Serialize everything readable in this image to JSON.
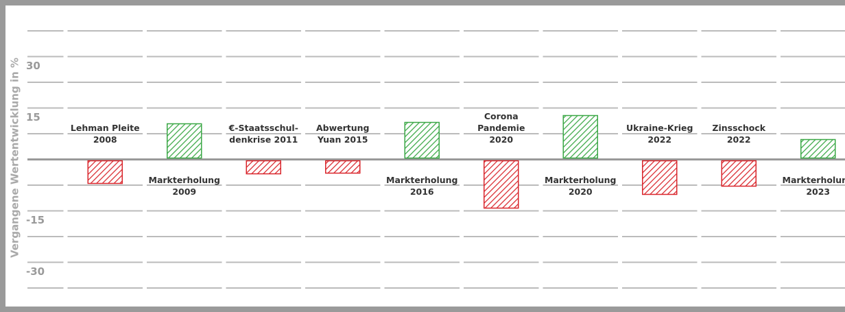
{
  "chart_data": {
    "type": "bar",
    "y_label": "Vergangene Wertentwicklung in %",
    "categories": [
      [
        "Lehman Pleite",
        "2008"
      ],
      [
        "Markterholung",
        "2009"
      ],
      [
        "€-Staatsschul-",
        "denkrise 2011"
      ],
      [
        "Abwertung",
        "Yuan 2015"
      ],
      [
        "Markterholung",
        "2016"
      ],
      [
        "Corona",
        "Pandemie",
        "2020"
      ],
      [
        "Markterholung",
        "2020"
      ],
      [
        "Ukraine-Krieg",
        "2022"
      ],
      [
        "Zinsschock",
        "2022"
      ],
      [
        "Markterholung",
        "2023"
      ]
    ],
    "values": [
      -7,
      10.4,
      -4.2,
      -4,
      10.8,
      -14.2,
      12.8,
      -10.2,
      -7.8,
      5.8
    ],
    "positive_color": "#3aa745",
    "negative_color": "#d9252b",
    "ylim": [
      -37.5,
      37.5
    ],
    "yticks": [
      30,
      15,
      -15,
      -30
    ],
    "minor_yticks": [
      37.5,
      22.5,
      7.5,
      -7.5,
      -22.5,
      -37.5
    ],
    "grid": true
  }
}
